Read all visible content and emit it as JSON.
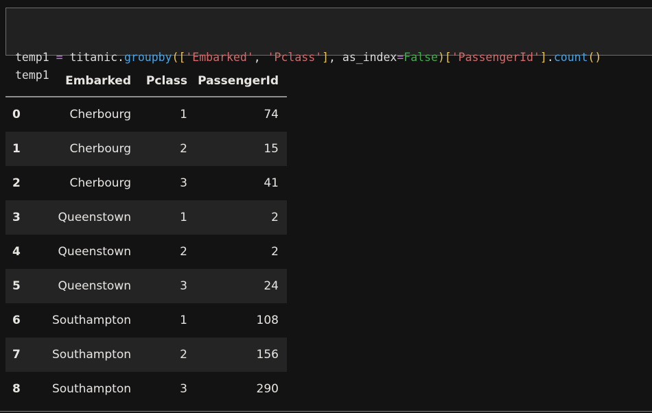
{
  "code_cell": {
    "full_text": "temp1 = titanic.groupby(['Embarked', 'Pclass'], as_index=False)['PassengerId'].count()\ntemp1",
    "lines": [
      {
        "tokens": [
          {
            "t": "temp1 ",
            "c": "d"
          },
          {
            "t": "=",
            "c": "op"
          },
          {
            "t": " titanic.",
            "c": "d"
          },
          {
            "t": "groupby",
            "c": "fn"
          },
          {
            "t": "([",
            "c": "br"
          },
          {
            "t": "'Embarked'",
            "c": "str"
          },
          {
            "t": ", ",
            "c": "d"
          },
          {
            "t": "'Pclass'",
            "c": "str"
          },
          {
            "t": "]",
            "c": "br"
          },
          {
            "t": ", as_index",
            "c": "d"
          },
          {
            "t": "=",
            "c": "op"
          },
          {
            "t": "False",
            "c": "kw"
          },
          {
            "t": ")[",
            "c": "br"
          },
          {
            "t": "'PassengerId'",
            "c": "str"
          },
          {
            "t": "]",
            "c": "br"
          },
          {
            "t": ".",
            "c": "d"
          },
          {
            "t": "count",
            "c": "fn"
          },
          {
            "t": "()",
            "c": "br"
          }
        ]
      },
      {
        "tokens": [
          {
            "t": "temp1",
            "c": "d"
          }
        ]
      }
    ]
  },
  "output_table": {
    "index_header": "",
    "columns": [
      "Embarked",
      "Pclass",
      "PassengerId"
    ],
    "rows": [
      {
        "index": "0",
        "embarked": "Cherbourg",
        "pclass": "1",
        "passenger_id": "74"
      },
      {
        "index": "1",
        "embarked": "Cherbourg",
        "pclass": "2",
        "passenger_id": "15"
      },
      {
        "index": "2",
        "embarked": "Cherbourg",
        "pclass": "3",
        "passenger_id": "41"
      },
      {
        "index": "3",
        "embarked": "Queenstown",
        "pclass": "1",
        "passenger_id": "2"
      },
      {
        "index": "4",
        "embarked": "Queenstown",
        "pclass": "2",
        "passenger_id": "2"
      },
      {
        "index": "5",
        "embarked": "Queenstown",
        "pclass": "3",
        "passenger_id": "24"
      },
      {
        "index": "6",
        "embarked": "Southampton",
        "pclass": "1",
        "passenger_id": "108"
      },
      {
        "index": "7",
        "embarked": "Southampton",
        "pclass": "2",
        "passenger_id": "156"
      },
      {
        "index": "8",
        "embarked": "Southampton",
        "pclass": "3",
        "passenger_id": "290"
      }
    ]
  },
  "colors": {
    "page_background": "#131313",
    "cell_background": "#212121",
    "cell_border": "#6e6e6e",
    "row_stripe": "#242424",
    "table_text": "#e8e6e3",
    "header_underline": "#8f8f8f",
    "syntax_default": "#dcdcdc",
    "syntax_operator": "#c678dd",
    "syntax_function": "#4aa3e2",
    "syntax_string": "#d66a6a",
    "syntax_bracket": "#e8c462",
    "syntax_keyword_const": "#3fae4a"
  }
}
